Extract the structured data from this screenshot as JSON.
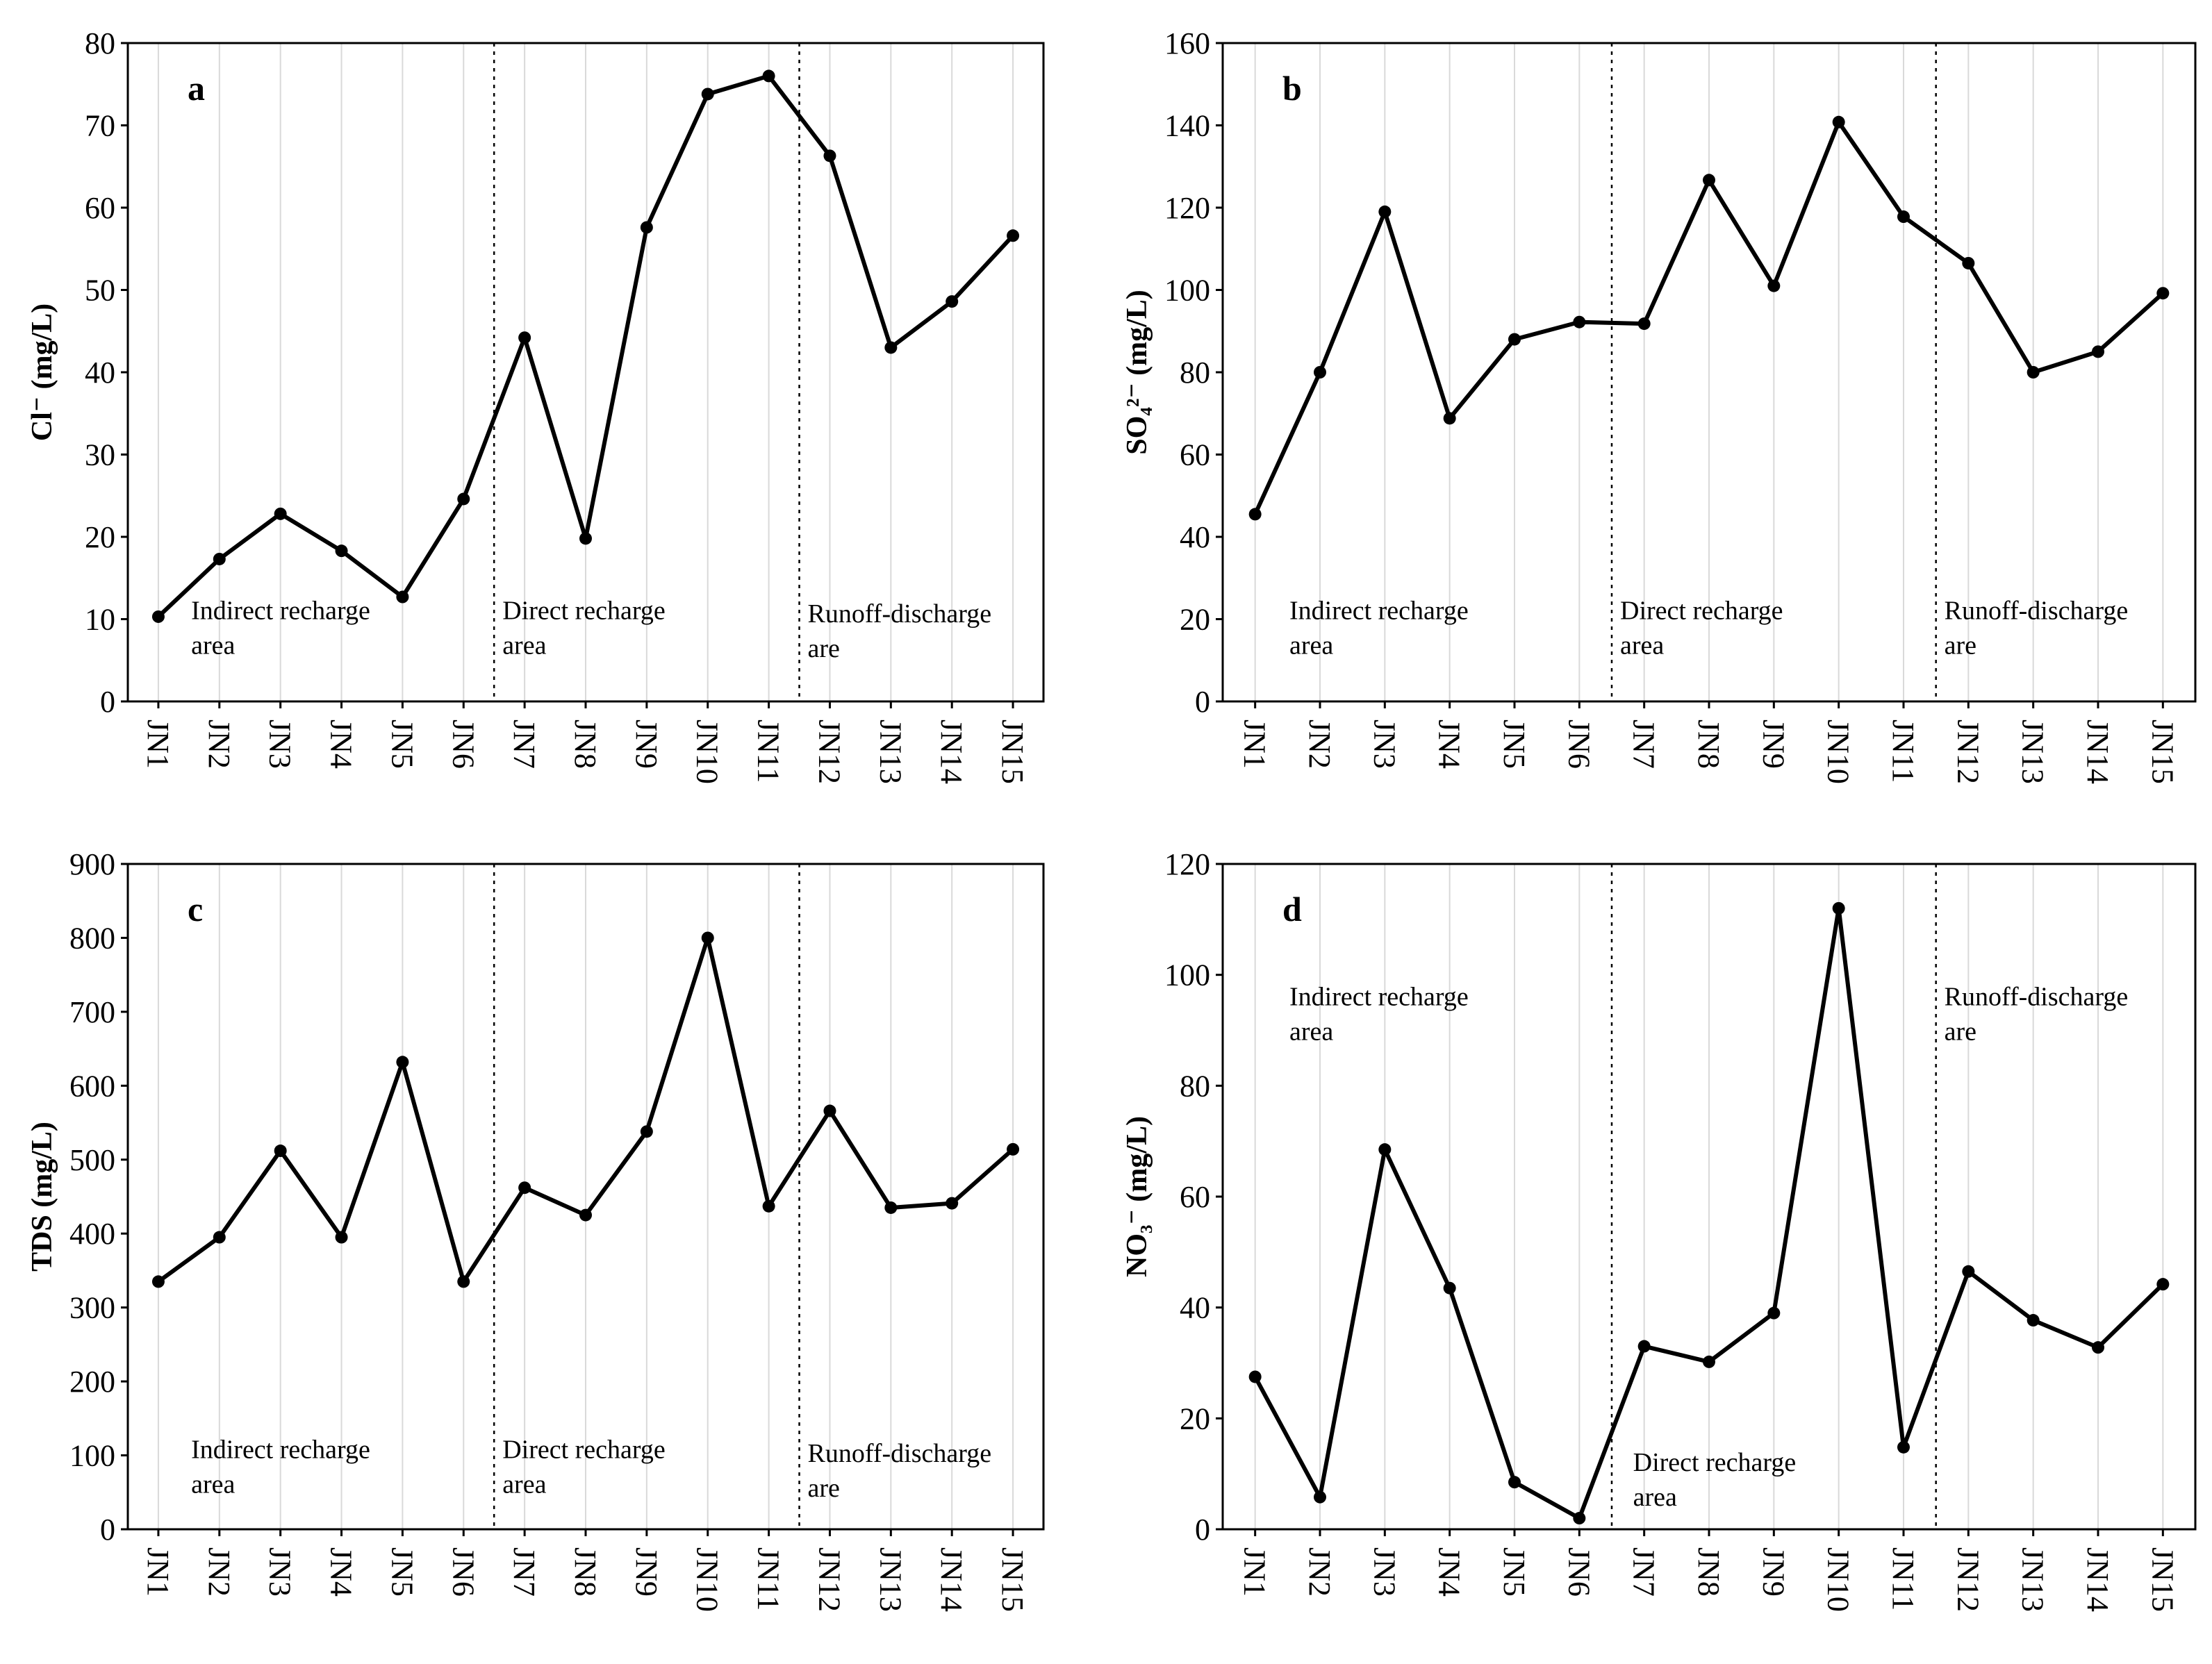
{
  "chart_data": [
    {
      "type": "line",
      "panel_label": "a",
      "ylabel": "Cl⁻ (mg/L)",
      "categories": [
        "JN1",
        "JN2",
        "JN3",
        "JN4",
        "JN5",
        "JN6",
        "JN7",
        "JN8",
        "JN9",
        "JN10",
        "JN11",
        "JN12",
        "JN13",
        "JN14",
        "JN15"
      ],
      "values": [
        10.3,
        17.3,
        22.8,
        18.3,
        12.7,
        24.6,
        44.2,
        19.8,
        57.6,
        73.8,
        76.0,
        66.3,
        43.0,
        48.6,
        56.6
      ],
      "ylim": [
        0,
        80
      ],
      "yticks": [
        0,
        10,
        20,
        30,
        40,
        50,
        60,
        70,
        80
      ],
      "dividers_after": [
        6,
        11
      ],
      "regions": [
        {
          "line1": "Indirect recharge",
          "line2": "area",
          "value": 9,
          "after": 0.9
        },
        {
          "line1": "Direct recharge",
          "line2": "area",
          "value": 9,
          "after": 6.0
        },
        {
          "line1": "Runoff-discharge",
          "line2": "are",
          "value": 8.6,
          "after": 11.0
        }
      ]
    },
    {
      "type": "line",
      "panel_label": "b",
      "ylabel": "SO₄²⁻ (mg/L)",
      "categories": [
        "JN1",
        "JN2",
        "JN3",
        "JN4",
        "JN5",
        "JN6",
        "JN7",
        "JN8",
        "JN9",
        "JN10",
        "JN11",
        "JN12",
        "JN13",
        "JN14",
        "JN15"
      ],
      "values": [
        45.5,
        80.0,
        119.0,
        68.8,
        88.0,
        92.2,
        91.8,
        126.7,
        101.0,
        140.8,
        117.8,
        106.5,
        80.0,
        85.0,
        99.2
      ],
      "ylim": [
        0,
        160
      ],
      "yticks": [
        0,
        20,
        40,
        60,
        80,
        100,
        120,
        140,
        160
      ],
      "dividers_after": [
        6,
        11
      ],
      "regions": [
        {
          "line1": "Indirect recharge",
          "line2": "area",
          "value": 18,
          "after": 0.9
        },
        {
          "line1": "Direct recharge",
          "line2": "area",
          "value": 18,
          "after": 6.0
        },
        {
          "line1": "Runoff-discharge",
          "line2": "are",
          "value": 18,
          "after": 11.0
        }
      ]
    },
    {
      "type": "line",
      "panel_label": "c",
      "ylabel": "TDS (mg/L)",
      "categories": [
        "JN1",
        "JN2",
        "JN3",
        "JN4",
        "JN5",
        "JN6",
        "JN7",
        "JN8",
        "JN9",
        "JN10",
        "JN11",
        "JN12",
        "JN13",
        "JN14",
        "JN15"
      ],
      "values": [
        335,
        395,
        512,
        395,
        632,
        335,
        462,
        425,
        538,
        800,
        437,
        566,
        435,
        441,
        514
      ],
      "ylim": [
        0,
        900
      ],
      "yticks": [
        0,
        100,
        200,
        300,
        400,
        500,
        600,
        700,
        800,
        900
      ],
      "dividers_after": [
        6,
        11
      ],
      "regions": [
        {
          "line1": "Indirect recharge",
          "line2": "area",
          "value": 85,
          "after": 0.9
        },
        {
          "line1": "Direct recharge",
          "line2": "area",
          "value": 85,
          "after": 6.0
        },
        {
          "line1": "Runoff-discharge",
          "line2": "are",
          "value": 80,
          "after": 11.0
        }
      ]
    },
    {
      "type": "line",
      "panel_label": "d",
      "ylabel": "NO₃⁻ (mg/L)",
      "categories": [
        "JN1",
        "JN2",
        "JN3",
        "JN4",
        "JN5",
        "JN6",
        "JN7",
        "JN8",
        "JN9",
        "JN10",
        "JN11",
        "JN12",
        "JN13",
        "JN14",
        "JN15"
      ],
      "values": [
        27.5,
        5.8,
        68.5,
        43.5,
        8.5,
        2.0,
        33.0,
        30.2,
        39.0,
        112.0,
        14.8,
        46.5,
        37.7,
        32.8,
        44.2
      ],
      "ylim": [
        0,
        120
      ],
      "yticks": [
        0,
        20,
        40,
        60,
        80,
        100,
        120
      ],
      "dividers_after": [
        6,
        11
      ],
      "regions": [
        {
          "line1": "Indirect recharge",
          "line2": "area",
          "value": 93,
          "after": 0.9
        },
        {
          "line1": "Direct recharge",
          "line2": "area",
          "value": 9,
          "after": 6.2
        },
        {
          "line1": "Runoff-discharge",
          "line2": "are",
          "value": 93,
          "after": 11.0
        }
      ]
    }
  ]
}
